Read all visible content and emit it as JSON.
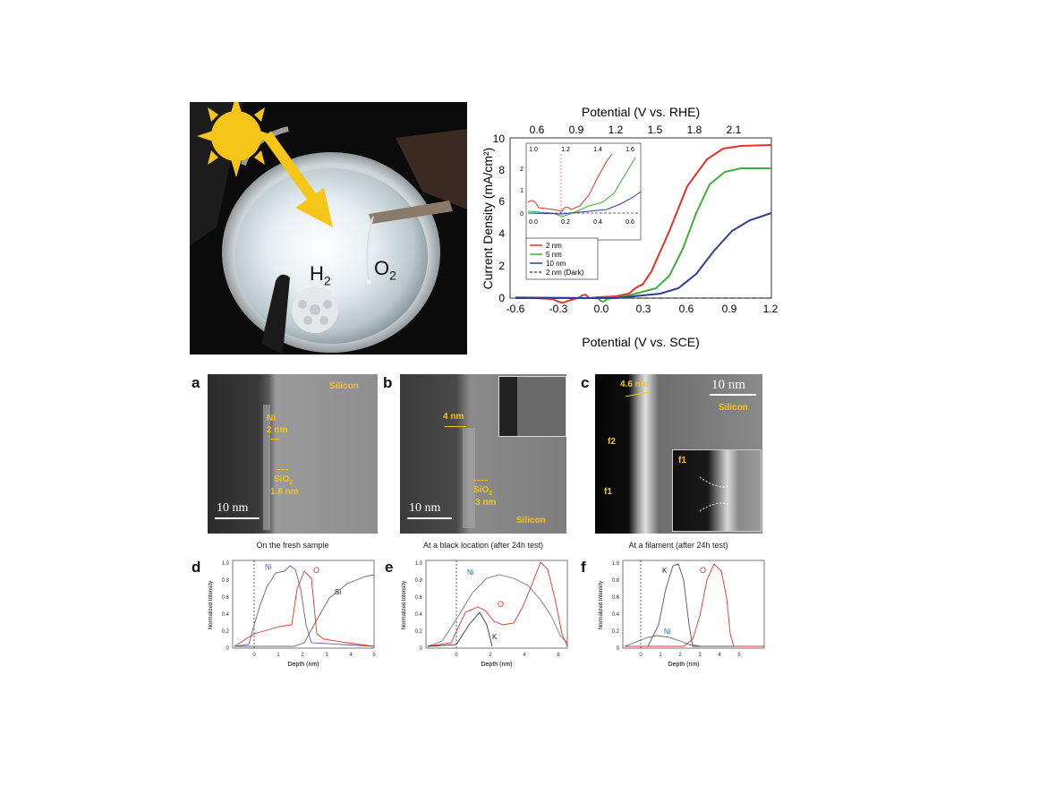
{
  "photo": {
    "h2_label": "H",
    "h2_sub": "2",
    "o2_label": "O",
    "o2_sub": "2",
    "icons": [
      "sun-icon",
      "arrow-icon"
    ]
  },
  "jv_chart": {
    "top_axis_label": "Potential (V vs. RHE)",
    "bottom_axis_label": "Potential (V vs. SCE)",
    "y_axis_label": "Current Density (mA/cm²)",
    "top_ticks": [
      "0.6",
      "0.9",
      "1.2",
      "1.5",
      "1.8",
      "2.1"
    ],
    "bottom_ticks": [
      "-0.6",
      "-0.3",
      "0.0",
      "0.3",
      "0.6",
      "0.9",
      "1.2"
    ],
    "y_ticks": [
      "0",
      "2",
      "4",
      "6",
      "8",
      "10"
    ],
    "inset_top_ticks": [
      "1.0",
      "1.2",
      "1.4",
      "1.6"
    ],
    "inset_bottom_ticks": [
      "0.0",
      "0.2",
      "0.4",
      "0.6"
    ],
    "inset_y_ticks": [
      "0",
      "1",
      "2"
    ],
    "legend": [
      "2 nm",
      "5 nm",
      "10 nm",
      "2 nm (Dark)"
    ]
  },
  "tem": {
    "a": {
      "letter": "a",
      "silicon": "Silicon",
      "ni": "Ni",
      "ni_thick": "2 nm",
      "sio2": "SiO",
      "sio2_sub": "2",
      "sio2_thick": "1.8 nm",
      "scale": "10 nm",
      "caption": "On the fresh sample"
    },
    "b": {
      "letter": "b",
      "thick": "4 nm",
      "sio2": "SiO",
      "sio2_sub": "2",
      "sio2_thick": "3 nm",
      "silicon": "Silicon",
      "scale": "10 nm",
      "caption": "At a black location (after 24h test)"
    },
    "c": {
      "letter": "c",
      "thick": "4.6 nm",
      "scale": "10 nm",
      "silicon": "Silicon",
      "f2": "f2",
      "f1": "f1",
      "inset_f1": "f1",
      "caption": "At a filament (after 24h test)"
    }
  },
  "profiles": {
    "d": {
      "letter": "d",
      "ylabel": "Normalized Intensity",
      "xlabel": "Depth (nm)",
      "xticks": [
        "0",
        "1",
        "2",
        "3",
        "4",
        "5"
      ],
      "yticks": [
        "0",
        "0.2",
        "0.4",
        "0.6",
        "0.8",
        "1.0"
      ],
      "ni": "Ni",
      "o": "O",
      "si": "Si"
    },
    "e": {
      "letter": "e",
      "ylabel": "Normalized Intensity",
      "xlabel": "Depth (nm)",
      "xticks": [
        "0",
        "2",
        "4",
        "6"
      ],
      "yticks": [
        "0",
        "0.2",
        "0.4",
        "0.6",
        "0.8",
        "1.0"
      ],
      "ni": "Ni",
      "o": "O",
      "k": "K"
    },
    "f": {
      "letter": "f",
      "ylabel": "Normalized Intensity",
      "xlabel": "Depth (nm)",
      "xticks": [
        "0",
        "1",
        "2",
        "3",
        "4",
        "5"
      ],
      "yticks": [
        "0",
        "0.2",
        "0.4",
        "0.6",
        "0.8",
        "1.0"
      ],
      "k": "K",
      "ni": "Ni",
      "o": "O"
    }
  },
  "colors": {
    "red": "#e5332a",
    "green": "#3fae3a",
    "blue": "#2f3f8f",
    "gold": "#f5c518",
    "ni_blue": "#2a6fb0",
    "ni_purple": "#5a4a9a"
  }
}
